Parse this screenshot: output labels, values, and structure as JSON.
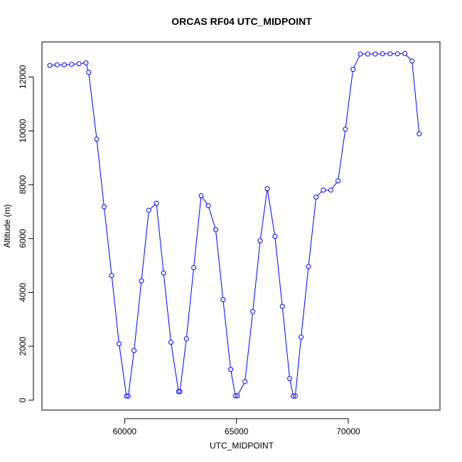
{
  "chart_data": {
    "type": "line",
    "title": "ORCAS RF04 UTC_MIDPOINT",
    "xlabel": "UTC_MIDPOINT",
    "ylabel": "Altitude (m)",
    "xlim": [
      56300,
      74100
    ],
    "ylim": [
      -370,
      13300
    ],
    "x_ticks": [
      60000,
      65000,
      70000
    ],
    "x_tick_labels": [
      "60000",
      "65000",
      "70000"
    ],
    "y_ticks": [
      0,
      2000,
      4000,
      6000,
      8000,
      10000,
      12000
    ],
    "y_tick_labels": [
      "0",
      "2000",
      "4000",
      "6000",
      "8000",
      "10000",
      "12000"
    ],
    "series_color": "#0000ff",
    "grid": false,
    "legend": "none",
    "series": [
      {
        "x": [
          56650,
          56980,
          57300,
          57630,
          57960,
          58270,
          58390,
          58750,
          59080,
          59420,
          59750,
          60080,
          60160,
          60420,
          60750,
          61080,
          61420,
          61740,
          62070,
          62410,
          62470,
          62760,
          63090,
          63420,
          63740,
          64070,
          64400,
          64740,
          64950,
          65040,
          65380,
          65730,
          66060,
          66380,
          66720,
          67050,
          67380,
          67540,
          67630,
          67890,
          68220,
          68560,
          68880,
          69220,
          69540,
          69870,
          70210,
          70540,
          70870,
          71200,
          71530,
          71870,
          72200,
          72530,
          72850,
          73170
        ],
        "y": [
          12430,
          12450,
          12450,
          12470,
          12490,
          12520,
          12170,
          9690,
          7180,
          4630,
          2090,
          150,
          150,
          1840,
          4430,
          7050,
          7310,
          4720,
          2150,
          320,
          320,
          2280,
          4920,
          7590,
          7220,
          6330,
          3730,
          1140,
          160,
          160,
          690,
          3290,
          5920,
          7850,
          6080,
          3480,
          800,
          150,
          150,
          2340,
          4960,
          7540,
          7800,
          7800,
          8140,
          10060,
          12280,
          12850,
          12850,
          12850,
          12860,
          12860,
          12860,
          12870,
          12590,
          9890
        ]
      }
    ]
  }
}
